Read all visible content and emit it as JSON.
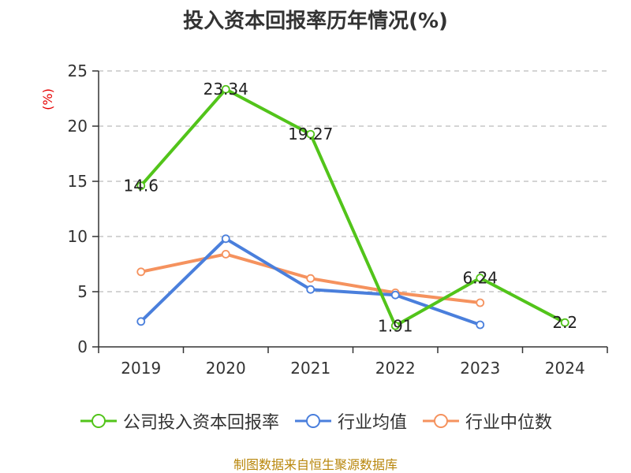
{
  "chart_data": {
    "type": "line",
    "title": "投入资本回报率历年情况(%)",
    "ylabel": "(%)",
    "xlabel": "",
    "categories": [
      "2019",
      "2020",
      "2021",
      "2022",
      "2023",
      "2024"
    ],
    "ylim": [
      0,
      25
    ],
    "yticks": [
      0,
      5,
      10,
      15,
      20,
      25
    ],
    "grid": true,
    "legend_position": "bottom",
    "series": [
      {
        "name": "公司投入资本回报率",
        "color": "#52c41a",
        "values": [
          14.6,
          23.34,
          19.27,
          1.91,
          6.24,
          2.2
        ],
        "labels": [
          "14.6",
          "23.34",
          "19.27",
          "1.91",
          "6.24",
          "2.2"
        ]
      },
      {
        "name": "行业均值",
        "color": "#4a7fdc",
        "values": [
          2.3,
          9.8,
          5.2,
          4.7,
          2.0,
          null
        ]
      },
      {
        "name": "行业中位数",
        "color": "#f5925e",
        "values": [
          6.8,
          8.4,
          6.2,
          4.9,
          4.0,
          null
        ]
      }
    ]
  },
  "source": "制图数据来自恒生聚源数据库"
}
